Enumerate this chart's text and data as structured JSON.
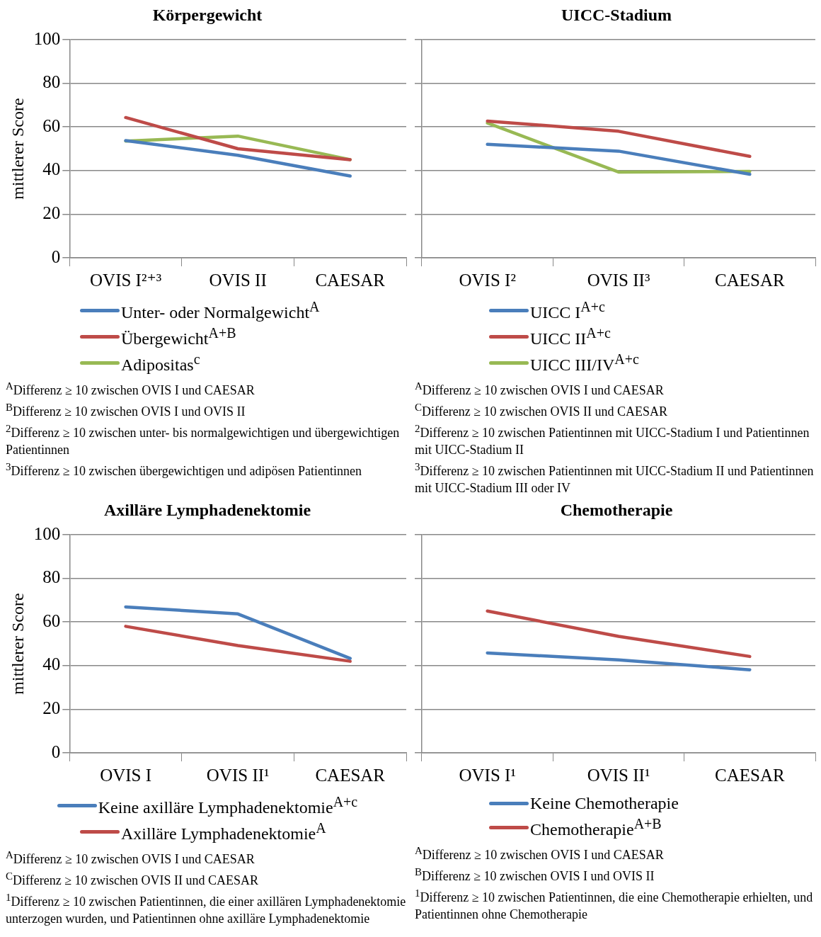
{
  "chart_data": [
    {
      "type": "line",
      "title": "Körpergewicht",
      "ylabel": "mittlerer Score",
      "categories": [
        "OVIS I²⁺³",
        "OVIS II",
        "CAESAR"
      ],
      "ylim": [
        0,
        100
      ],
      "yticks": [
        0,
        20,
        40,
        60,
        80,
        100
      ],
      "grid": "y",
      "legend": "bottom",
      "marker": "none",
      "series": [
        {
          "name": "Unter- oder Normalgewicht$^{A}$",
          "color": "#4a7ebb",
          "values": [
            53.7,
            47,
            37.5
          ]
        },
        {
          "name": "Übergewicht$^{A+B}$",
          "color": "#be4b48",
          "values": [
            64.3,
            50,
            45
          ]
        },
        {
          "name": "Adipositas$^{c}$",
          "color": "#98b954",
          "values": [
            53.5,
            55.8,
            45
          ]
        }
      ],
      "annotations": [
        "$^{A}$Differenz ≥ 10 zwischen OVIS I und CAESAR",
        "$^{B}$Differenz ≥ 10 zwischen OVIS I und OVIS II",
        "$^{2}$Differenz ≥ 10 zwischen unter- bis normalgewichtigen und übergewichtigen Patientinnen",
        "$^{3}$Differenz ≥ 10 zwischen übergewichtigen und adipösen Patientinnen"
      ]
    },
    {
      "type": "line",
      "title": "UICC-Stadium",
      "categories": [
        "OVIS I²",
        "OVIS II³",
        "CAESAR"
      ],
      "ylim": [
        0,
        100
      ],
      "yticks": [
        0,
        20,
        40,
        60,
        80,
        100
      ],
      "tick_labels": "x",
      "grid": "y",
      "legend": "bottom",
      "marker": "none",
      "series": [
        {
          "name": "UICC I$^{A+c}$",
          "color": "#4a7ebb",
          "values": [
            52,
            48.9,
            38.3
          ]
        },
        {
          "name": "UICC II$^{A+c}$",
          "color": "#be4b48",
          "values": [
            62.7,
            58,
            46.5
          ]
        },
        {
          "name": "UICC III/IV$^{A+c}$",
          "color": "#98b954",
          "values": [
            61.8,
            39.3,
            39.6
          ]
        }
      ],
      "annotations": [
        "$^{A}$Differenz ≥ 10 zwischen OVIS I und CAESAR",
        "$^{C}$Differenz ≥ 10 zwischen OVIS II und CAESAR",
        "$^{2}$Differenz ≥ 10 zwischen Patientinnen mit UICC-Stadium I und Patientinnen mit UICC-Stadium II",
        "$^{3}$Differenz ≥ 10 zwischen Patientinnen mit UICC-Stadium II und Patientinnen mit UICC-Stadium III oder IV"
      ]
    },
    {
      "type": "line",
      "title": "Axilläre Lymphadenektomie",
      "ylabel": "mittlerer Score",
      "categories": [
        "OVIS I",
        "OVIS II¹",
        "CAESAR"
      ],
      "ylim": [
        0,
        100
      ],
      "yticks": [
        0,
        20,
        40,
        60,
        80,
        100
      ],
      "grid": "y",
      "legend": "bottom",
      "marker": "none",
      "series": [
        {
          "name": "Keine axilläre Lymphadenektomie$^{A+c}$",
          "color": "#4a7ebb",
          "values": [
            66.9,
            63.7,
            43.3
          ]
        },
        {
          "name": "Axilläre Lymphadenektomie$^{A}$",
          "color": "#be4b48",
          "values": [
            58,
            49.2,
            42
          ]
        }
      ],
      "annotations": [
        "$^{A}$Differenz ≥ 10 zwischen OVIS I und CAESAR",
        "$^{C}$Differenz ≥ 10 zwischen OVIS II und CAESAR",
        "$^{1}$Differenz ≥ 10 zwischen Patientinnen, die einer axillären Lymphadenektomie unterzogen wurden, und Patientinnen ohne axilläre Lymphadenektomie"
      ]
    },
    {
      "type": "line",
      "title": "Chemotherapie",
      "categories": [
        "OVIS I¹",
        "OVIS II¹",
        "CAESAR"
      ],
      "ylim": [
        0,
        100
      ],
      "yticks": [
        0,
        20,
        40,
        60,
        80,
        100
      ],
      "tick_labels": "x",
      "grid": "y",
      "legend": "bottom",
      "marker": "none",
      "series": [
        {
          "name": "Keine Chemotherapie",
          "color": "#4a7ebb",
          "values": [
            45.8,
            42.6,
            38.1
          ]
        },
        {
          "name": "Chemotherapie$^{A+B}$",
          "color": "#be4b48",
          "values": [
            65,
            53.4,
            44.2
          ]
        }
      ],
      "annotations": [
        "$^{A}$Differenz ≥ 10 zwischen OVIS I und CAESAR",
        "$^{B}$Differenz ≥ 10 zwischen OVIS I und OVIS II",
        "$^{1}$Differenz ≥ 10 zwischen Patientinnen, die eine Chemotherapie erhielten, und Patientinnen ohne Chemotherapie"
      ]
    }
  ]
}
